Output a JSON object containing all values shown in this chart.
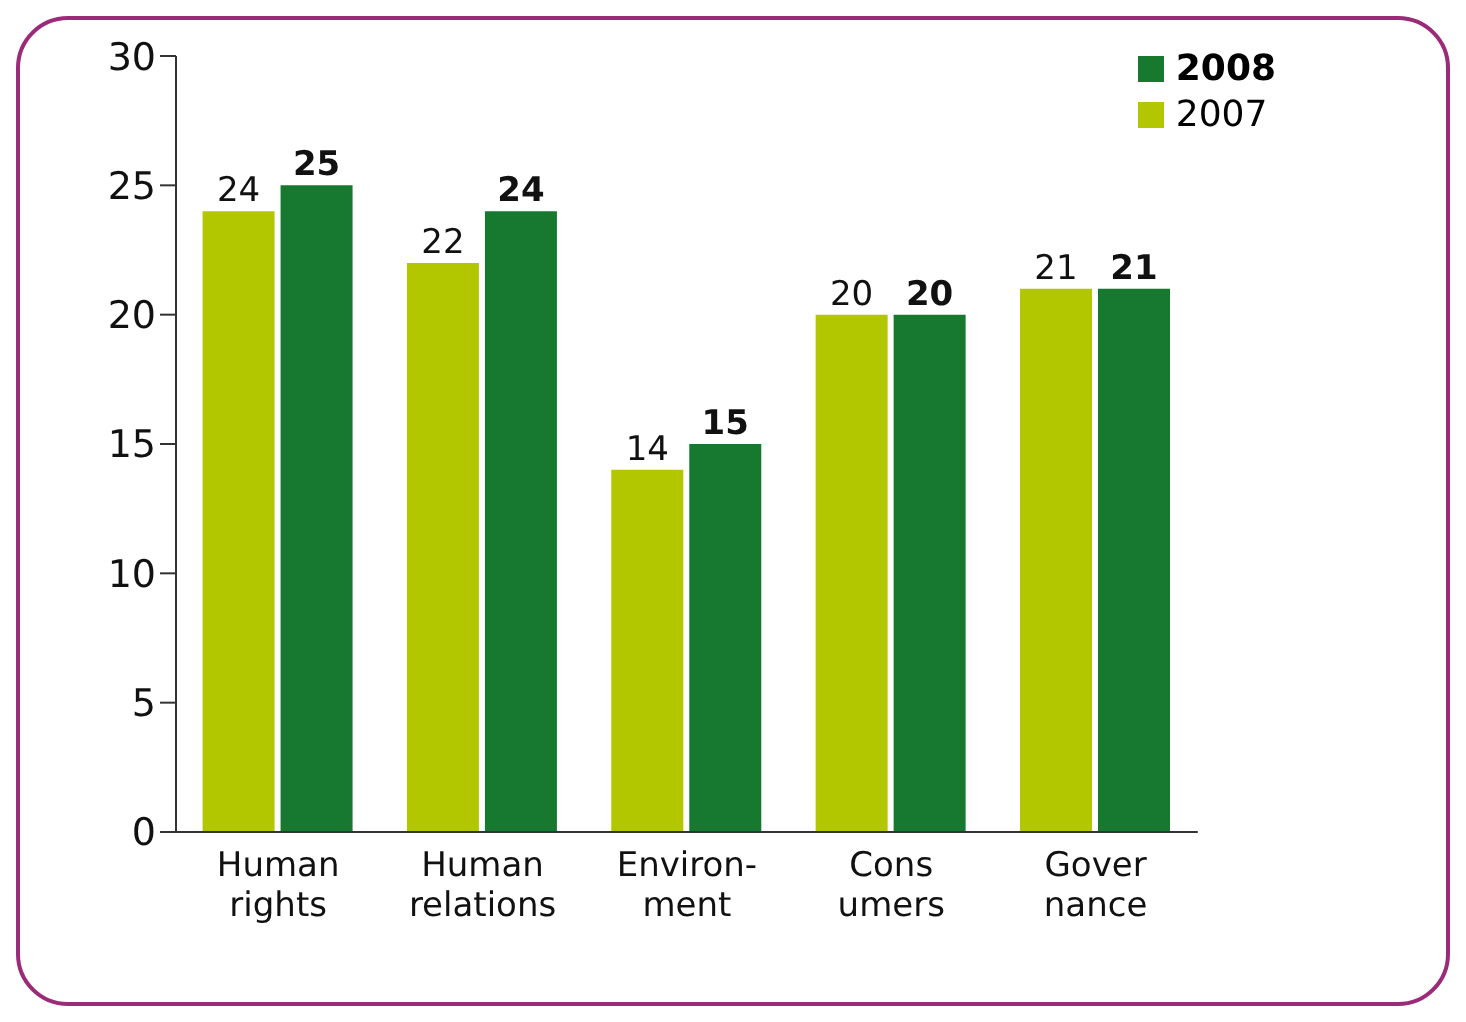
{
  "chart_data": {
    "type": "bar",
    "categories": [
      "Human\nrights",
      "Human\nrelations",
      "Environ-\nment",
      "Cons\numers",
      "Gover\nnance"
    ],
    "series": [
      {
        "name": "2007",
        "color": "#b3c700",
        "values": [
          24,
          22,
          14,
          20,
          21
        ]
      },
      {
        "name": "2008",
        "color": "#17782f",
        "values": [
          25,
          24,
          15,
          20,
          21
        ]
      }
    ],
    "ylim": [
      0,
      30
    ],
    "yticks": [
      0,
      5,
      10,
      15,
      20,
      25,
      30
    ],
    "grid": false,
    "legend": "top right",
    "data_labels": true
  }
}
